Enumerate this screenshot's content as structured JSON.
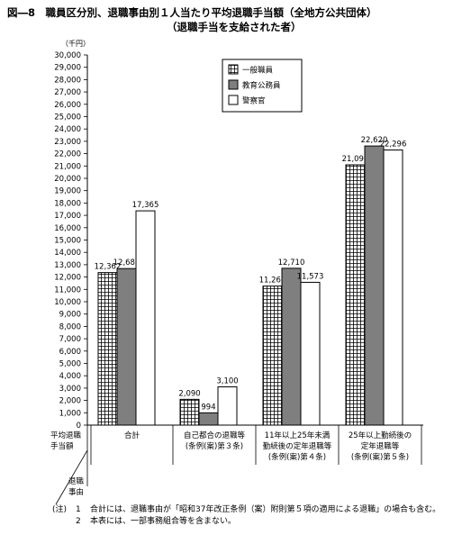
{
  "title": {
    "line1": "図―8　職員区分別、退職事由別１人当たり平均退職手当額（全地方公共団体）",
    "line2": "（退職手当を支給された者）"
  },
  "chart_data": {
    "type": "bar",
    "unit": "（千円）",
    "ylim": [
      0,
      30000
    ],
    "ytick_step": 1000,
    "row_header": [
      "平均退職",
      "手当額"
    ],
    "col_header": [
      "退職",
      "事由"
    ],
    "categories": [
      [
        "合計"
      ],
      [
        "自己都合の退職等",
        "(条例(案)第３条)"
      ],
      [
        "11年以上25年未満",
        "勤続後の定年退職等",
        "(条例(案)第４条)"
      ],
      [
        "25年以上勤続後の",
        "定年退職等",
        "(条例(案)第５条)"
      ]
    ],
    "series": [
      {
        "name": "一般職員",
        "values": [
          12362,
          2090,
          11267,
          21096
        ],
        "labels": [
          "12,362",
          "2,090",
          "11,267",
          "21,096"
        ],
        "pattern": "grid"
      },
      {
        "name": "教育公務員",
        "values": [
          12687,
          994,
          12710,
          22620
        ],
        "labels": [
          "12,687",
          "994",
          "12,710",
          "22,620"
        ],
        "color": "#7f7f7f"
      },
      {
        "name": "警察官",
        "values": [
          17365,
          3100,
          11573,
          22296
        ],
        "labels": [
          "17,365",
          "3,100",
          "11,573",
          "22,296"
        ],
        "color": "#ffffff"
      }
    ],
    "legend_position": "top-center",
    "grid": false
  },
  "notes": {
    "prefix": "(注)",
    "items": [
      {
        "num": "1",
        "text": "合計には、退職事由が「昭和37年改正条例（案）附則第５項の適用による退職」の場合も含む。"
      },
      {
        "num": "2",
        "text": "本表には、一部事務組合等を含まない。"
      }
    ]
  }
}
